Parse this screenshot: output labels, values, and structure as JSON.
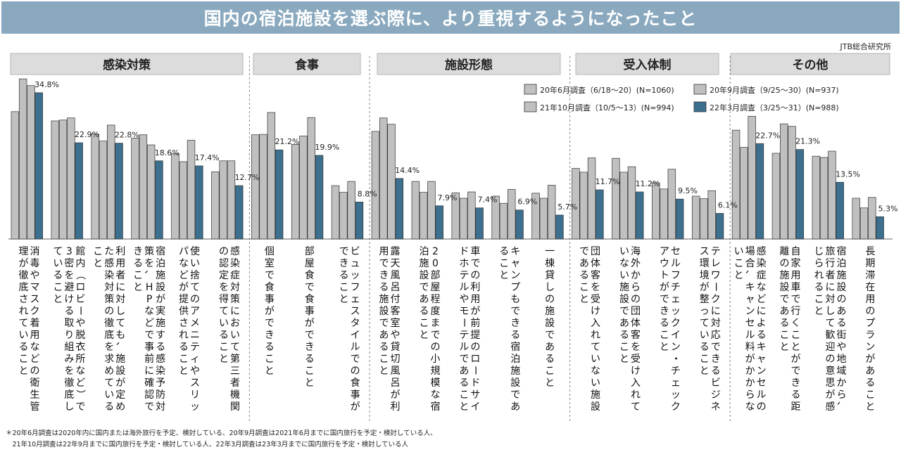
{
  "title": "国内の宿泊施設を選ぶ際に、より重視するようになったこと",
  "source": "JTB総合研究所",
  "chart_data": {
    "type": "bar",
    "title": "国内の宿泊施設を選ぶ際に、より重視するようになったこと",
    "ylabel": "",
    "ylim": [
      0,
      40
    ],
    "grid": false,
    "legend_position": "top-right",
    "groups": [
      {
        "name": "感染対策",
        "count": 6
      },
      {
        "name": "食事",
        "count": 3
      },
      {
        "name": "施設形態",
        "count": 5
      },
      {
        "name": "受入体制",
        "count": 4
      },
      {
        "name": "その他",
        "count": 4
      }
    ],
    "categories": [
      "消毒やマスク着用などの衛生管理が徹底されていること",
      "館内（ロビーや脱衣所など）で3密を避ける取り組みを徹底していること",
      "利用者に対しても、施設が定めた感染対策の徹底を求めていること",
      "宿泊施設が実施する感染予防対策を、HPなどで事前に確認できること",
      "使い捨てのアメニティやスリッパなどが提供されること",
      "感染症対策において第三者機関の認定を得ていること",
      "個室で食事ができること",
      "部屋食で食事ができること",
      "ビュッフェスタイルでの食事ができること",
      "露天風呂付客室や貸切風呂が利用できる施設であること",
      "20部屋程度までの小規模な宿泊施設であること",
      "車での利用が前提のロードサイドホテルやモーテルであること",
      "キャンプもできる宿泊施設であること",
      "一棟貸しの施設であること",
      "団体客を受け入れていない施設であること",
      "海外からの団体客を受け入れていない施設であること",
      "セルフチェックイン・チェックアウトができること",
      "テレワークに対応できるビジネス環境が整っていること",
      "感染症などによるキャンセルの場合、キャンセル料がかからないこと",
      "自家用車で行くことができる距離の施設であること",
      "宿泊施設のある街や地域から、旅行者に対して歓迎の意思が感じられること",
      "長期滞在用のプランがあること"
    ],
    "series": [
      {
        "name": "20年6月調査（6/18〜20）(N=1060)",
        "color": "#c0c0c0",
        "values": [
          30.3,
          28.1,
          25.0,
          24.0,
          20.3,
          16.0,
          24.8,
          22.5,
          12.7,
          25.6,
          13.7,
          11.0,
          10.2,
          10.9,
          16.8,
          19.2,
          13.4,
          10.2,
          25.9,
          20.4,
          19.7,
          9.7
        ]
      },
      {
        "name": "20年9月調査（9/25〜30）(N=937)",
        "color": "#c0c0c0",
        "values": [
          38.1,
          28.3,
          23.3,
          24.8,
          18.4,
          18.6,
          24.9,
          24.5,
          11.1,
          28.8,
          11.1,
          9.7,
          8.5,
          9.7,
          15.9,
          15.9,
          11.9,
          9.6,
          21.8,
          27.4,
          19.4,
          7.4
        ]
      },
      {
        "name": "21年10月調査（10/5〜13）(N=994)",
        "color": "#c0c0c0",
        "values": [
          36.5,
          28.8,
          27.1,
          22.4,
          23.5,
          18.6,
          30.1,
          28.9,
          13.7,
          27.3,
          13.7,
          11.2,
          11.8,
          12.8,
          19.3,
          17.2,
          16.6,
          11.5,
          29.2,
          26.8,
          20.9,
          9.9
        ]
      },
      {
        "name": "22年3月調査（3/25〜31）(N=988)",
        "color": "#3d6f8e",
        "values": [
          34.8,
          22.9,
          22.8,
          18.6,
          17.4,
          12.7,
          21.2,
          19.9,
          8.8,
          14.4,
          7.9,
          7.4,
          6.9,
          5.7,
          11.7,
          11.2,
          9.5,
          6.1,
          22.7,
          21.3,
          13.5,
          5.3
        ]
      }
    ]
  },
  "notes": [
    "＊20年6月調査は2020年内に国内または海外旅行を予定、検討している、20年9月調査は2021年6月までに国内旅行を予定・検討している人、",
    "　21年10月調査は22年9月までに国内旅行を予定・検討している人、22年3月調査は23年3月までに国内旅行を予定・検討している人"
  ]
}
